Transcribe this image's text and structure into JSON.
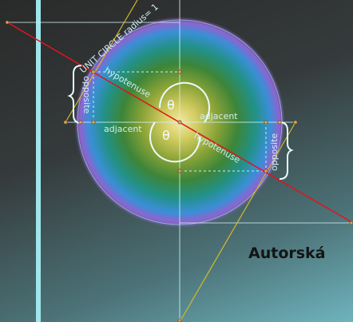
{
  "diagram": {
    "unit_circle_label": "UNIT CIRCLE radius= 1",
    "hypotenuse_upper": "hypotenuse",
    "hypotenuse_lower": "hypotenuse",
    "opposite_left": "opposite",
    "opposite_right": "opposite",
    "adjacent_left": "adjacent",
    "adjacent_right": "adjacent",
    "theta_upper": "θ",
    "theta_lower": "θ",
    "signature": "Autorská"
  },
  "colors": {
    "background_dark": "#2a2a2a",
    "background_teal": "#6fb3bd",
    "secant_line": "#e0141e",
    "tangent_line": "#d4b82a",
    "guide_lines": "#cfeef0",
    "vertical_bar": "#9fe6ec",
    "label_text": "#cfeff2"
  }
}
